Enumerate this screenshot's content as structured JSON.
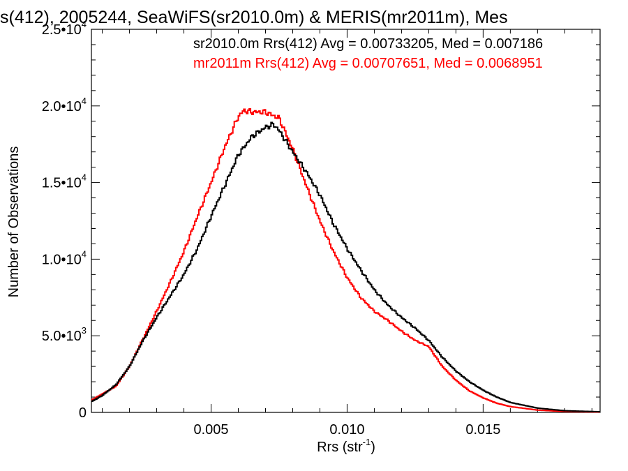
{
  "chart_data": {
    "type": "line",
    "title": "s(412), 2005244, SeaWiFS(sr2010.0m) & MERIS(mr2011m), Mes",
    "xlabel": "Rrs (str",
    "xlabel_sup": "-1",
    "xlabel_close": ")",
    "ylabel": "Number of Observations",
    "xlim": [
      0.0006,
      0.0193
    ],
    "ylim": [
      0,
      25000
    ],
    "x_ticks": [
      {
        "value": 0.005,
        "label": "0.005"
      },
      {
        "value": 0.01,
        "label": "0.010"
      },
      {
        "value": 0.015,
        "label": "0.015"
      }
    ],
    "y_ticks": [
      {
        "value": 0,
        "base": "0",
        "exp": ""
      },
      {
        "value": 5000,
        "base": "5.0•10",
        "exp": "3"
      },
      {
        "value": 10000,
        "base": "1.0•10",
        "exp": "4"
      },
      {
        "value": 15000,
        "base": "1.5•10",
        "exp": "4"
      },
      {
        "value": 20000,
        "base": "2.0•10",
        "exp": "4"
      },
      {
        "value": 25000,
        "base": "2.5•10",
        "exp": "4"
      }
    ],
    "grid": false,
    "legend_position": "top",
    "series": [
      {
        "name": "sr2010.0m Rrs(412) Avg = 0.00733205, Med = 0.007186",
        "color": "#000000",
        "x": [
          0.0006,
          0.001,
          0.0015,
          0.002,
          0.0025,
          0.003,
          0.0035,
          0.004,
          0.0045,
          0.005,
          0.0055,
          0.006,
          0.0065,
          0.007,
          0.0073,
          0.0075,
          0.008,
          0.0085,
          0.009,
          0.0095,
          0.01,
          0.0105,
          0.011,
          0.0115,
          0.012,
          0.0125,
          0.013,
          0.0135,
          0.014,
          0.0145,
          0.015,
          0.0155,
          0.016,
          0.017,
          0.018,
          0.0193
        ],
        "values": [
          700,
          1100,
          1800,
          3000,
          4700,
          6200,
          7600,
          9000,
          10700,
          12800,
          14800,
          16800,
          18000,
          18600,
          18800,
          18400,
          17000,
          15700,
          14200,
          12300,
          10700,
          9300,
          8000,
          7000,
          6200,
          5500,
          4700,
          3600,
          2700,
          2000,
          1450,
          1000,
          650,
          280,
          110,
          40
        ]
      },
      {
        "name": "mr2011m Rrs(412) Avg = 0.00707651, Med = 0.0068951",
        "color": "#ff0000",
        "x": [
          0.0006,
          0.001,
          0.0015,
          0.002,
          0.0025,
          0.003,
          0.0035,
          0.004,
          0.0045,
          0.005,
          0.0055,
          0.006,
          0.0062,
          0.0065,
          0.007,
          0.0075,
          0.008,
          0.0085,
          0.009,
          0.0095,
          0.01,
          0.0105,
          0.011,
          0.0115,
          0.012,
          0.0125,
          0.013,
          0.0135,
          0.014,
          0.0145,
          0.015,
          0.0155,
          0.016,
          0.017,
          0.018,
          0.0193
        ],
        "values": [
          800,
          1200,
          1700,
          3000,
          4800,
          6600,
          8500,
          10500,
          12800,
          15000,
          17300,
          19300,
          19700,
          19600,
          19600,
          19200,
          17200,
          14800,
          12500,
          10500,
          8800,
          7500,
          6600,
          6000,
          5300,
          4700,
          4300,
          3000,
          2100,
          1400,
          950,
          600,
          380,
          150,
          60,
          20
        ]
      }
    ]
  }
}
